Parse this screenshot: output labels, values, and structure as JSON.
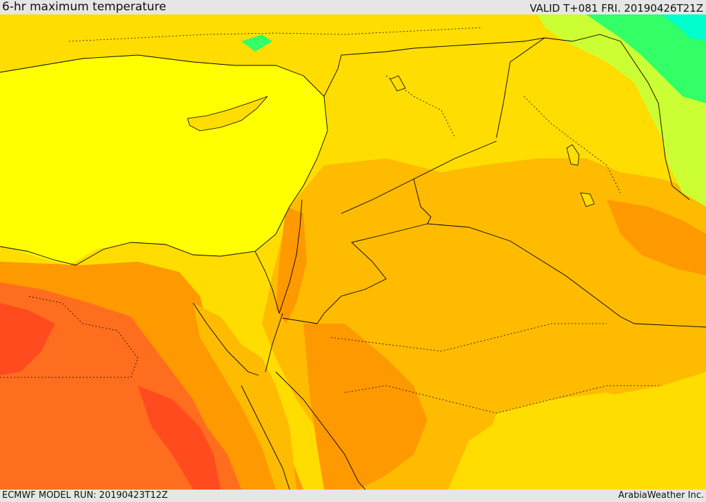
{
  "header": {
    "title": "6-hr maximum temperature",
    "valid": "VALID T+081 FRI. 20190426T21Z"
  },
  "footer": {
    "model_run": "ECMWF MODEL RUN: 20190423T12Z",
    "credit": "ArabiaWeather Inc."
  },
  "colors": {
    "sea_yellow": "#ffff00",
    "gold": "#ffdd00",
    "orange_light": "#ffbb00",
    "orange": "#ff9900",
    "orange_dark": "#ff6e1e",
    "red_orange": "#ff4b1e",
    "yellow_green": "#ccff33",
    "green": "#33ff66",
    "cyan": "#00ffcc",
    "border_line": "#000000"
  },
  "map": {
    "variable": "6-hr maximum temperature",
    "projection": "regional",
    "legend_visible": false
  }
}
